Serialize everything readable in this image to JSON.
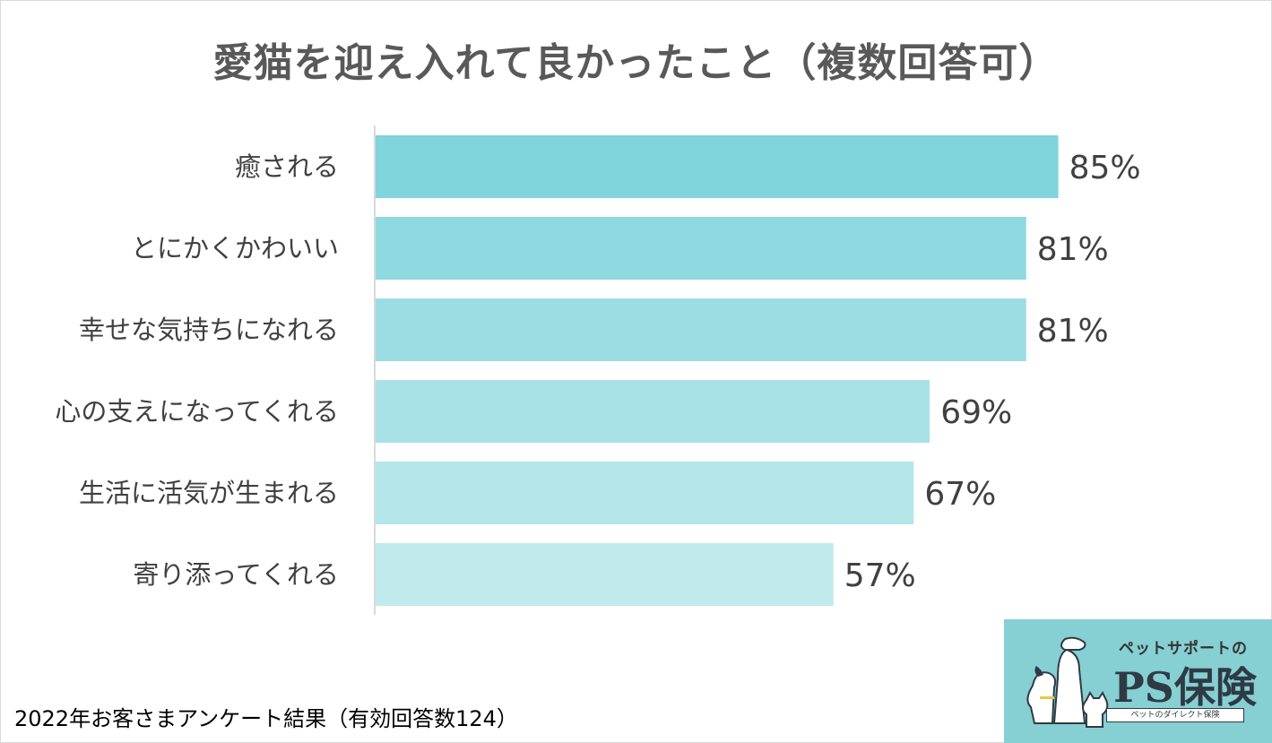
{
  "title": "愛猫を迎え入れて良かったこと（複数回答可）",
  "footnote": "2022年お客さまアンケート結果（有効回答数124）",
  "logo": {
    "tagline": "ペットサポートの",
    "brand": "PS保険",
    "subline": "ペットのダイレクト保険"
  },
  "chart_data": {
    "type": "bar",
    "orientation": "horizontal",
    "categories": [
      "癒される",
      "とにかくかわいい",
      "幸せな気持ちになれる",
      "心の支えになってくれる",
      "生活に活気が生まれる",
      "寄り添ってくれる"
    ],
    "values": [
      85,
      81,
      81,
      69,
      67,
      57
    ],
    "data_labels": [
      "85%",
      "81%",
      "81%",
      "69%",
      "67%",
      "57%"
    ],
    "unit": "%",
    "xlim": [
      0,
      100
    ],
    "grid": false,
    "legend": "none",
    "colors": [
      "#7fd5db",
      "#8ed9df",
      "#9bdde2",
      "#a9e2e6",
      "#b4e6ea",
      "#c1eaec"
    ],
    "label_color": "#404040",
    "axis_color": "#d9d9d9"
  }
}
